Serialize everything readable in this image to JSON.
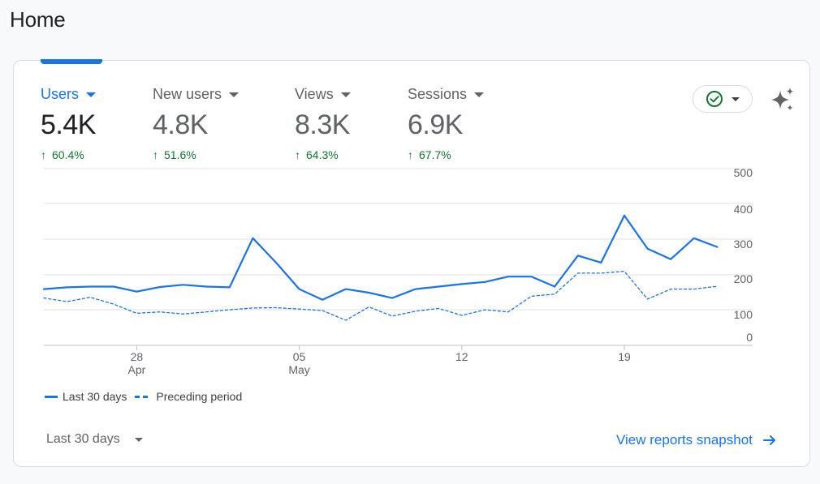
{
  "page": {
    "title": "Home"
  },
  "metrics": [
    {
      "label": "Users",
      "value": "5.4K",
      "change": "60.4%",
      "active": true
    },
    {
      "label": "New users",
      "value": "4.8K",
      "change": "51.6%",
      "active": false
    },
    {
      "label": "Views",
      "value": "8.3K",
      "change": "64.3%",
      "active": false
    },
    {
      "label": "Sessions",
      "value": "6.9K",
      "change": "67.7%",
      "active": false
    }
  ],
  "status": {
    "icon": "check-circle-icon",
    "menu_icon": "chevron-down-icon"
  },
  "insights": {
    "icon": "sparkle-icon"
  },
  "legend": {
    "current": "Last 30 days",
    "previous": "Preceding period"
  },
  "footer": {
    "range_label": "Last 30 days",
    "link_label": "View reports snapshot",
    "link_icon": "arrow-right-icon"
  },
  "colors": {
    "accent": "#1a73e8",
    "positive": "#137333",
    "text": "#202124",
    "muted": "#5f6368"
  },
  "chart_data": {
    "type": "line",
    "title": "",
    "xlabel": "",
    "ylabel": "",
    "ylim": [
      0,
      500
    ],
    "y_ticks": [
      "500",
      "400",
      "300",
      "200",
      "100",
      "0"
    ],
    "x_ticks": [
      {
        "day": "28",
        "month": "Apr",
        "index": 4
      },
      {
        "day": "05",
        "month": "May",
        "index": 11
      },
      {
        "day": "12",
        "month": "",
        "index": 18
      },
      {
        "day": "19",
        "month": "",
        "index": 25
      }
    ],
    "x": [
      "Apr 24",
      "Apr 25",
      "Apr 26",
      "Apr 27",
      "Apr 28",
      "Apr 29",
      "Apr 30",
      "May 01",
      "May 02",
      "May 03",
      "May 04",
      "May 05",
      "May 06",
      "May 07",
      "May 08",
      "May 09",
      "May 10",
      "May 11",
      "May 12",
      "May 13",
      "May 14",
      "May 15",
      "May 16",
      "May 17",
      "May 18",
      "May 19",
      "May 20",
      "May 21",
      "May 22",
      "May 23"
    ],
    "series": [
      {
        "name": "Last 30 days",
        "style": "solid",
        "values": [
          160,
          165,
          167,
          167,
          153,
          166,
          172,
          167,
          165,
          305,
          235,
          160,
          130,
          160,
          150,
          135,
          160,
          167,
          174,
          180,
          195,
          195,
          167,
          255,
          235,
          370,
          275,
          245,
          305,
          280
        ]
      },
      {
        "name": "Preceding period",
        "style": "dashed",
        "values": [
          135,
          125,
          137,
          118,
          92,
          96,
          90,
          96,
          102,
          107,
          108,
          104,
          100,
          72,
          110,
          84,
          98,
          106,
          86,
          102,
          96,
          140,
          146,
          205,
          205,
          210,
          132,
          160,
          160,
          168
        ]
      }
    ]
  }
}
